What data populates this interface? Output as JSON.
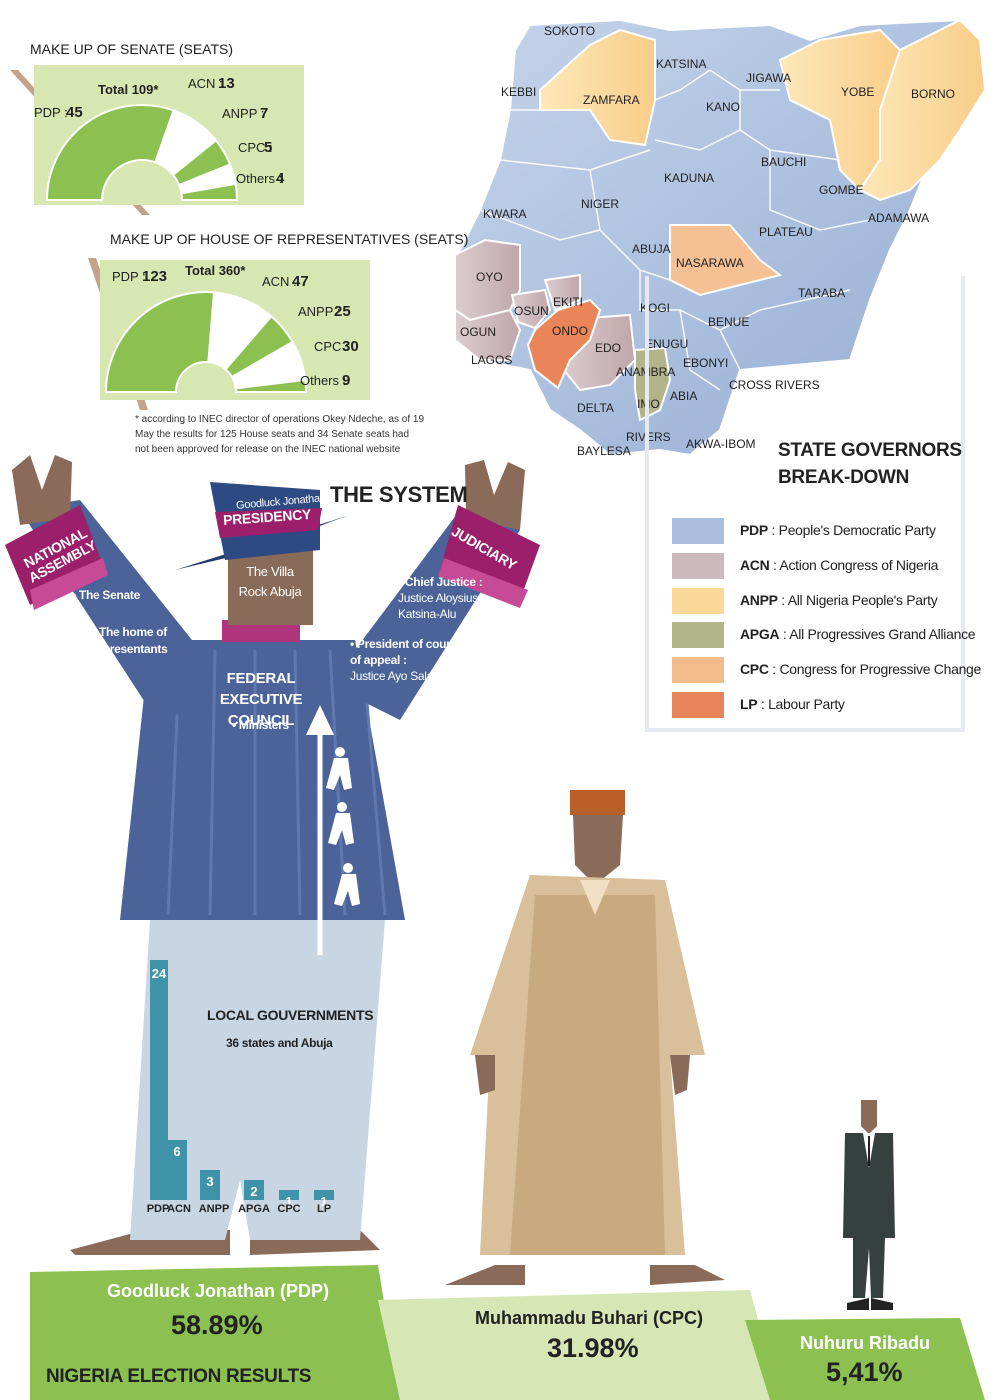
{
  "colors": {
    "pdp": "#a9bedc",
    "acn": "#cdb9bd",
    "anpp": "#fbd79a",
    "apga": "#b2b48a",
    "cpc": "#f4bb8c",
    "lp": "#e8845a",
    "green": "#8cc152",
    "body_blue": "#4a659a",
    "magenta": "#9c1f6c"
  },
  "senate": {
    "title": "MAKE UP OF SENATE (SEATS)",
    "total": "Total 109*",
    "pdp": {
      "label": "PDP :",
      "value": "45"
    },
    "acn": {
      "label": "ACN :",
      "value": "13"
    },
    "anpp": {
      "label": "ANPP :",
      "value": "7"
    },
    "cpc": {
      "label": "CPC :",
      "value": "5"
    },
    "others": {
      "label": "Others :",
      "value": "4"
    }
  },
  "house": {
    "title": "MAKE UP OF HOUSE OF REPRESENTATIVES (SEATS)",
    "total": "Total 360*",
    "pdp": {
      "label": "PDP :",
      "value": "123"
    },
    "acn": {
      "label": "ACN :",
      "value": "47"
    },
    "anpp": {
      "label": "ANPP :",
      "value": "25"
    },
    "cpc": {
      "label": "CPC :",
      "value": "30"
    },
    "others": {
      "label": "Others :",
      "value": "9"
    }
  },
  "footnote": "* according to INEC director of operations Okey Ndeche, as of 19 May the results for 125 House seats and 34 Senate seats had not been approved for release on the INEC national website",
  "system": {
    "title": "THE SYSTEM",
    "hat_name": "Goodluck Jonathan",
    "presidency": "PRESIDENCY",
    "villa": "The Villa Rock Abuja",
    "national_assembly": "NATIONAL ASSEMBLY",
    "senate_item": "• The Senate",
    "house_item": "• The home of representants",
    "judiciary": "JUDICIARY",
    "chief_justice_label": "• Chief Justice :",
    "chief_justice_name": "Justice Aloysius Katsina-Alu",
    "appeal_label": "• President of court of appeal :",
    "appeal_name": "Justice Ayo Salami",
    "fec_title": "FEDERAL EXECUTIVE COUNCIL",
    "ministers": "• Ministers",
    "local_title": "LOCAL GOUVERNMENTS",
    "local_sub": "36 states and Abuja"
  },
  "governors_bars": [
    {
      "party": "PDP",
      "value": 24
    },
    {
      "party": "ACN",
      "value": 6
    },
    {
      "party": "ANPP",
      "value": 3
    },
    {
      "party": "APGA",
      "value": 2
    },
    {
      "party": "CPC",
      "value": 1
    },
    {
      "party": "LP",
      "value": 1
    }
  ],
  "map_states": [
    "SOKOTO",
    "KATSINA",
    "JIGAWA",
    "YOBE",
    "BORNO",
    "KEBBI",
    "ZAMFARA",
    "KANO",
    "BAUCHI",
    "GOMBE",
    "KADUNA",
    "NIGER",
    "KWARA",
    "ADAMAWA",
    "PLATEAU",
    "ABUJA",
    "NASARAWA",
    "OYO",
    "TARABA",
    "EKITI",
    "OSUN",
    "KOGI",
    "OGUN",
    "ONDO",
    "BENUE",
    "EDO",
    "ENUGU",
    "LAGOS",
    "EBONYI",
    "ANAMBRA",
    "CROSS RIVERS",
    "ABIA",
    "IMO",
    "DELTA",
    "RIVERS",
    "BAYLESA",
    "AKWA-IBOM"
  ],
  "legend": {
    "title_line1": "STATE GOVERNORS",
    "title_line2": "BREAK-DOWN",
    "items": [
      {
        "abbr": "PDP",
        "name": " : People's Democratic Party",
        "color": "#a9bedc"
      },
      {
        "abbr": "ACN",
        "name": " : Action Congress of Nigeria",
        "color": "#cdb9bd"
      },
      {
        "abbr": "ANPP",
        "name": " : All Nigeria People's Party",
        "color": "#fbd79a"
      },
      {
        "abbr": "APGA",
        "name": " : All Progressives Grand Alliance",
        "color": "#b2b48a"
      },
      {
        "abbr": "CPC",
        "name": " : Congress for Progressive Change",
        "color": "#f4bb8c"
      },
      {
        "abbr": "LP",
        "name": " : Labour Party",
        "color": "#e8845a"
      }
    ]
  },
  "results": {
    "title": "NIGERIA ELECTION RESULTS",
    "candidates": [
      {
        "name": "Goodluck Jonathan (PDP)",
        "pct": "58.89%"
      },
      {
        "name": "Muhammadu Buhari (CPC)",
        "pct": "31.98%"
      },
      {
        "name": "Nuhuru Ribadu",
        "pct": "5,41%"
      }
    ]
  }
}
